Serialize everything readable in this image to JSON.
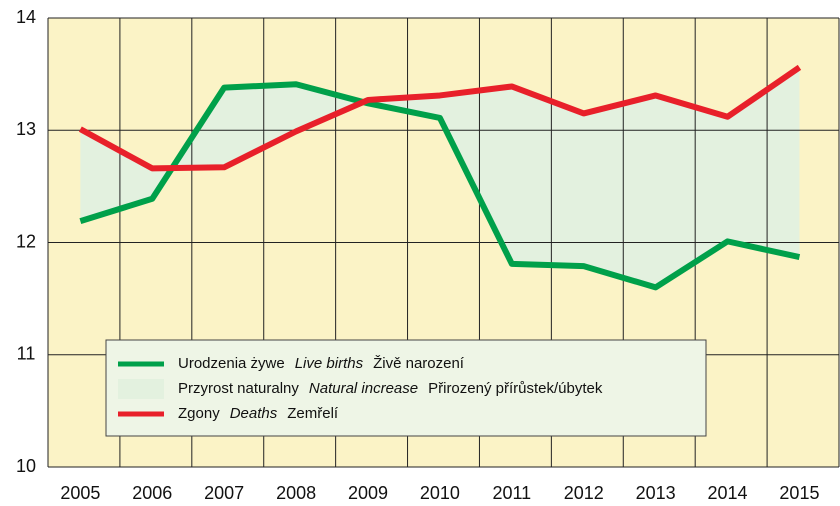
{
  "chart_data": {
    "type": "line",
    "categories": [
      "2005",
      "2006",
      "2007",
      "2008",
      "2009",
      "2010",
      "2011",
      "2012",
      "2013",
      "2014",
      "2015"
    ],
    "series": [
      {
        "name": [
          "Urodzenia żywe",
          "Live births",
          "Živě narození"
        ],
        "color": "#00a04a",
        "values": [
          12.19,
          12.39,
          13.38,
          13.41,
          13.24,
          13.11,
          11.81,
          11.79,
          11.6,
          12.01,
          11.87
        ]
      },
      {
        "name": [
          "Zgony",
          "Deaths",
          "Zemřelí"
        ],
        "color": "#e8202a",
        "values": [
          13.01,
          12.66,
          12.67,
          12.99,
          13.27,
          13.31,
          13.39,
          13.15,
          13.31,
          13.12,
          13.56
        ]
      }
    ],
    "fill_between": {
      "name": [
        "Przyrost naturalny",
        "Natural increase",
        "Přirozený přírůstek/úbytek"
      ],
      "color": "#e3f1df"
    },
    "ylim": [
      10,
      14
    ],
    "yticks": [
      10,
      11,
      12,
      13,
      14
    ],
    "grid": true,
    "background": "#fbf3c6"
  }
}
